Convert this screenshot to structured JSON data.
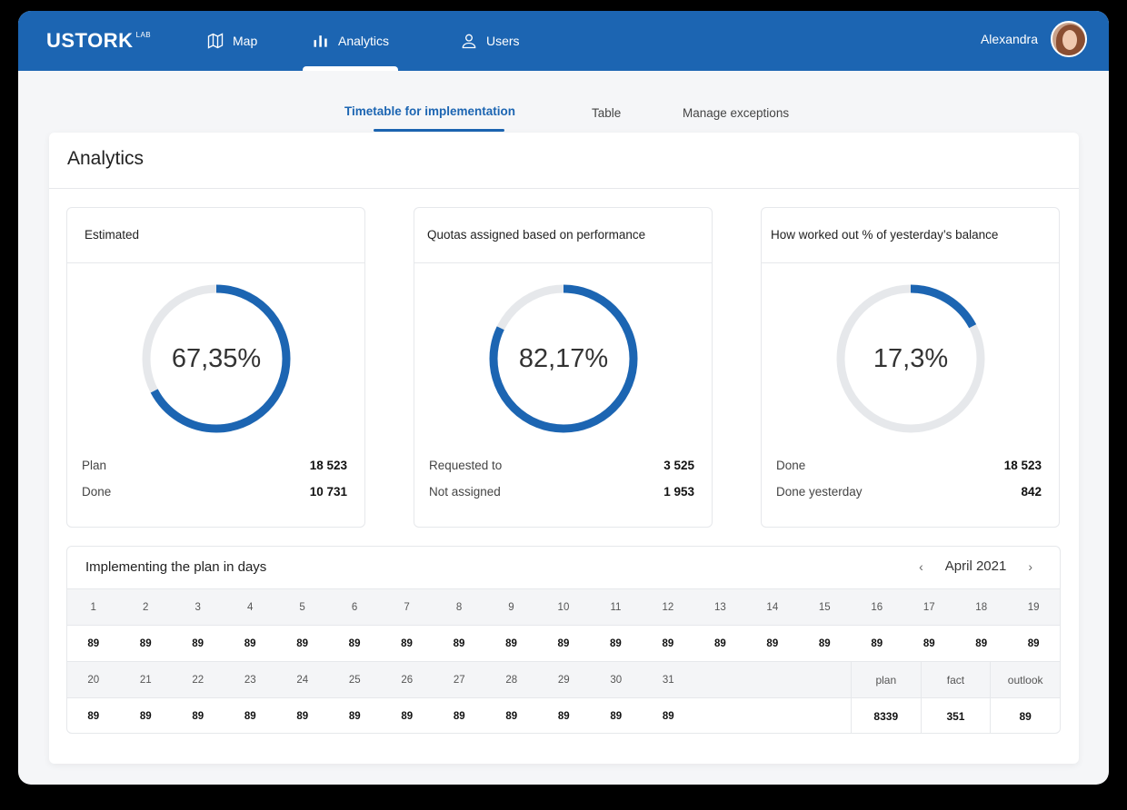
{
  "brand": {
    "logo": "USTORK",
    "logo_sup": "LAB"
  },
  "nav": [
    {
      "label": "Map",
      "icon": "map-icon"
    },
    {
      "label": "Analytics",
      "icon": "bar-chart-icon",
      "active": true
    },
    {
      "label": "Users",
      "icon": "user-icon"
    }
  ],
  "user": {
    "name": "Alexandra"
  },
  "subtabs": [
    {
      "label": "Timetable for implementation",
      "active": true
    },
    {
      "label": "Table"
    },
    {
      "label": "Manage exceptions"
    }
  ],
  "panel": {
    "title": "Analytics"
  },
  "cards": [
    {
      "title": "Estimated",
      "percent_label": "67,35%",
      "percent": 67.35,
      "rows": [
        {
          "label": "Plan",
          "value": "18 523"
        },
        {
          "label": "Done",
          "value": "10 731"
        }
      ]
    },
    {
      "title": "Quotas assigned based on performance",
      "percent_label": "82,17%",
      "percent": 82.17,
      "rows": [
        {
          "label": "Requested to",
          "value": "3 525"
        },
        {
          "label": "Not assigned",
          "value": "1 953"
        }
      ]
    },
    {
      "title": "How worked out % of yesterday’s balance",
      "percent_label": "17,3%",
      "percent": 17.3,
      "rows": [
        {
          "label": "Done",
          "value": "18 523"
        },
        {
          "label": "Done yesterday",
          "value": "842"
        }
      ]
    }
  ],
  "plan": {
    "title": "Implementing the plan in days",
    "month": "April 2021",
    "row1_days": [
      "1",
      "2",
      "3",
      "4",
      "5",
      "6",
      "7",
      "8",
      "9",
      "10",
      "11",
      "12",
      "13",
      "14",
      "15",
      "16",
      "17",
      "18",
      "19"
    ],
    "row1_values": [
      "89",
      "89",
      "89",
      "89",
      "89",
      "89",
      "89",
      "89",
      "89",
      "89",
      "89",
      "89",
      "89",
      "89",
      "89",
      "89",
      "89",
      "89",
      "89"
    ],
    "row2_days": [
      "20",
      "21",
      "22",
      "23",
      "24",
      "25",
      "26",
      "27",
      "28",
      "29",
      "30",
      "31"
    ],
    "row2_values": [
      "89",
      "89",
      "89",
      "89",
      "89",
      "89",
      "89",
      "89",
      "89",
      "89",
      "89",
      "89"
    ],
    "summary_headers": [
      "plan",
      "fact",
      "outlook"
    ],
    "summary_values": [
      "8339",
      "351",
      "89"
    ]
  },
  "colors": {
    "primary": "#1c65b2",
    "track": "#e6e8eb"
  }
}
